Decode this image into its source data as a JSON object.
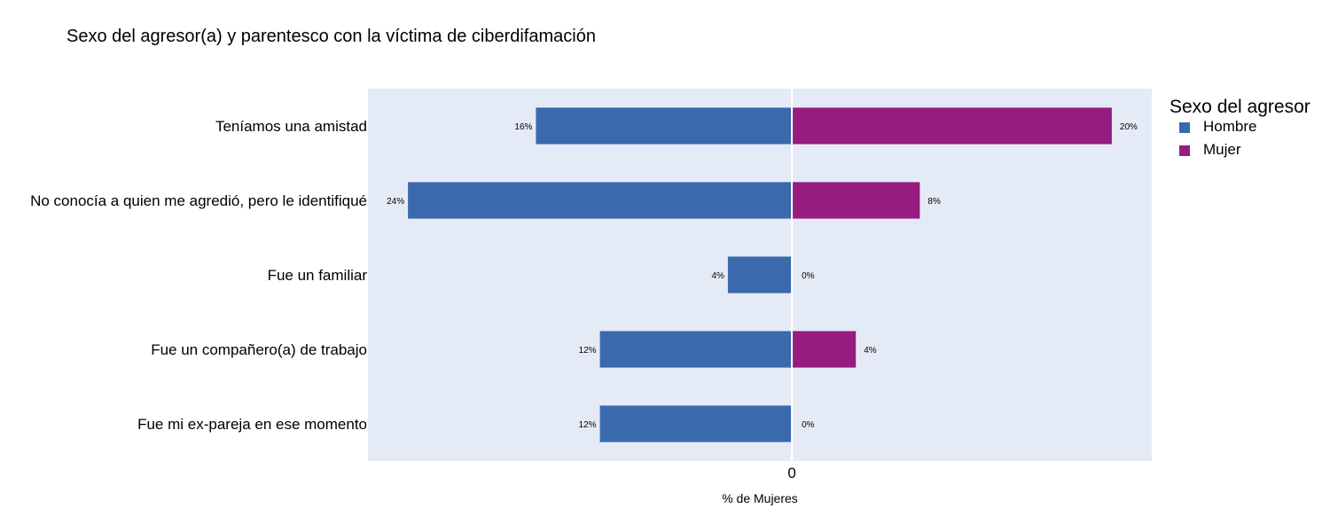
{
  "chart_data": {
    "type": "bar",
    "orientation": "horizontal",
    "layout": "diverging",
    "title": "Sexo del agresor(a) y parentesco con la víctima de ciberdifamación",
    "xlabel": "% de Mujeres",
    "ylabel": "",
    "x_tick_labels": [
      "0"
    ],
    "categories": [
      "Teníamos una amistad",
      "No conocía a quien me agredió, pero le identifiqué",
      "Fue un familiar",
      "Fue un compañero(a) de trabajo",
      "Fue mi ex-pareja en ese momento"
    ],
    "series": [
      {
        "name": "Hombre",
        "color": "#3a69ad",
        "direction": "left",
        "values": [
          16,
          24,
          4,
          12,
          12
        ],
        "labels": [
          "16%",
          "24%",
          "4%",
          "12%",
          "12%"
        ]
      },
      {
        "name": "Mujer",
        "color": "#961c7f",
        "direction": "right",
        "values": [
          20,
          8,
          0,
          4,
          0
        ],
        "labels": [
          "20%",
          "8%",
          "0%",
          "4%",
          "0%"
        ]
      }
    ],
    "xlim": [
      -26.5,
      22.5
    ],
    "grid": false,
    "legend": {
      "title": "Sexo del agresor",
      "position": "right",
      "items": [
        "Hombre",
        "Mujer"
      ]
    },
    "colors": {
      "plot_background": "#e5ebf6",
      "zero_line": "#ffffff"
    }
  }
}
